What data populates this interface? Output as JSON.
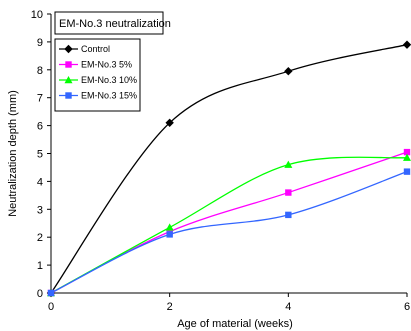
{
  "chart_data": {
    "type": "line",
    "title": "EM-No.3 neutralization",
    "xlabel": "Age of material (weeks)",
    "ylabel": "Neutralization depth (mm)",
    "xlim": [
      0,
      6
    ],
    "ylim": [
      0,
      10
    ],
    "x_ticks": [
      "0",
      "2",
      "4",
      "6"
    ],
    "y_ticks": [
      "0",
      "1",
      "2",
      "3",
      "4",
      "5",
      "6",
      "7",
      "8",
      "9",
      "10"
    ],
    "x": [
      0,
      2,
      4,
      6
    ],
    "series": [
      {
        "name": "Control",
        "values": [
          0,
          6.1,
          7.95,
          8.9
        ],
        "color": "#000000",
        "marker": "diamond"
      },
      {
        "name": "EM-No.3 5%",
        "values": [
          0,
          2.2,
          3.6,
          5.05
        ],
        "color": "#ff00ff",
        "marker": "square"
      },
      {
        "name": "EM-No.3 10%",
        "values": [
          0,
          2.35,
          4.6,
          4.85
        ],
        "color": "#00ff00",
        "marker": "triangle"
      },
      {
        "name": "EM-No.3 15%",
        "values": [
          0,
          2.1,
          2.8,
          4.35
        ],
        "color": "#3366ff",
        "marker": "square"
      }
    ],
    "legend_position": "top-left",
    "grid": false
  }
}
